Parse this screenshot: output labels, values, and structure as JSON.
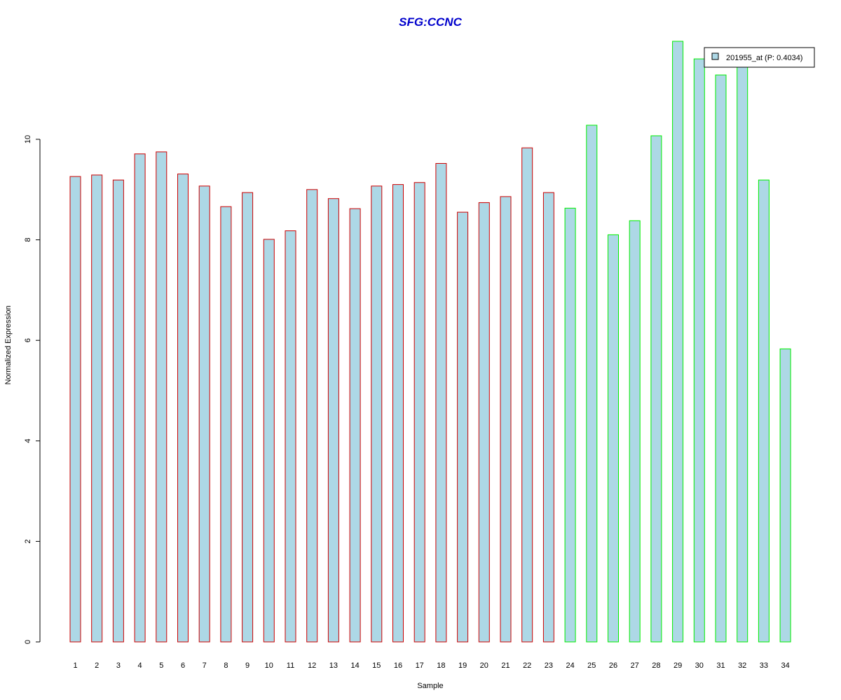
{
  "chart_data": {
    "type": "bar",
    "title": "SFG:CCNC",
    "xlabel": "Sample",
    "ylabel": "Normalized Expression",
    "categories": [
      "1",
      "2",
      "3",
      "4",
      "5",
      "6",
      "7",
      "8",
      "9",
      "10",
      "11",
      "12",
      "13",
      "14",
      "15",
      "16",
      "17",
      "18",
      "19",
      "20",
      "21",
      "22",
      "23",
      "24",
      "25",
      "26",
      "27",
      "28",
      "29",
      "30",
      "31",
      "32",
      "33",
      "34"
    ],
    "values": [
      9.26,
      9.29,
      9.19,
      9.71,
      9.75,
      9.31,
      9.07,
      8.66,
      8.94,
      8.01,
      8.18,
      9.0,
      8.82,
      8.62,
      9.07,
      9.1,
      9.14,
      9.52,
      8.55,
      8.74,
      8.86,
      9.83,
      8.94,
      8.63,
      10.28,
      8.1,
      8.38,
      10.07,
      11.95,
      11.6,
      11.28,
      11.5,
      9.19,
      5.83
    ],
    "groups": [
      "red",
      "red",
      "red",
      "red",
      "red",
      "red",
      "red",
      "red",
      "red",
      "red",
      "red",
      "red",
      "red",
      "red",
      "red",
      "red",
      "red",
      "red",
      "red",
      "red",
      "red",
      "red",
      "red",
      "green",
      "green",
      "green",
      "green",
      "green",
      "green",
      "green",
      "green",
      "green",
      "green",
      "green"
    ],
    "yticks": [
      0,
      2,
      4,
      6,
      8,
      10
    ],
    "ylim": [
      0,
      12
    ],
    "legend": {
      "label": "201955_at (P: 0.4034)",
      "placement": "top-right"
    },
    "colors": {
      "title": "#0000cc",
      "bar_fill": "#add8e6",
      "border_group1": "#cc0000",
      "border_group2": "#00ee00",
      "axis": "#000000"
    }
  }
}
